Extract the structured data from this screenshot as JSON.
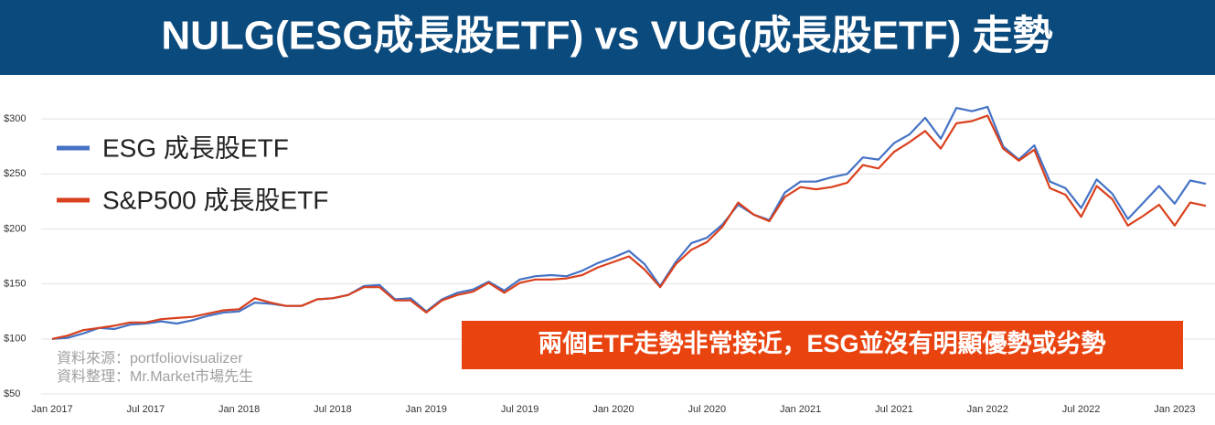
{
  "chart_data": {
    "type": "line",
    "title": "NULG(ESG成長股ETF) vs VUG(成長股ETF) 走勢",
    "annotation": "兩個ETF走勢非常接近，ESG並沒有明顯優勢或劣勢",
    "source": [
      "資料來源：portfoliovisualizer",
      "資料整理：Mr.Market市場先生"
    ],
    "legend": "top-left",
    "grid": true,
    "categories": [
      "Jan 2017",
      null,
      null,
      null,
      null,
      null,
      "Jul 2017",
      null,
      null,
      null,
      null,
      null,
      "Jan 2018",
      null,
      null,
      null,
      null,
      null,
      "Jul 2018",
      null,
      null,
      null,
      null,
      null,
      "Jan 2019",
      null,
      null,
      null,
      null,
      null,
      "Jul 2019",
      null,
      null,
      null,
      null,
      null,
      "Jan 2020",
      null,
      null,
      null,
      null,
      null,
      "Jul 2020",
      null,
      null,
      null,
      null,
      null,
      "Jan 2021",
      null,
      null,
      null,
      null,
      null,
      "Jul 2021",
      null,
      null,
      null,
      null,
      null,
      "Jan 2022",
      null,
      null,
      null,
      null,
      null,
      "Jul 2022",
      null,
      null,
      null,
      null,
      null,
      "Jan 2023",
      null,
      null
    ],
    "ylim": [
      50,
      325
    ],
    "yticks": [
      {
        "value": 50,
        "label": "$50"
      },
      {
        "value": 100,
        "label": "$100"
      },
      {
        "value": 150,
        "label": "$150"
      },
      {
        "value": 200,
        "label": "$200"
      },
      {
        "value": 250,
        "label": "$250"
      },
      {
        "value": 300,
        "label": "$300"
      }
    ],
    "series": [
      {
        "name": "ESG 成長股ETF",
        "color": "#4472c4",
        "values": [
          100,
          101,
          105,
          110,
          109,
          113,
          114,
          116,
          114,
          117,
          121,
          124,
          125,
          133,
          132,
          130,
          130,
          136,
          137,
          140,
          148,
          149,
          136,
          137,
          125,
          136,
          142,
          145,
          152,
          144,
          154,
          157,
          158,
          157,
          162,
          169,
          174,
          180,
          168,
          148,
          170,
          187,
          192,
          204,
          222,
          213,
          208,
          233,
          243,
          243,
          247,
          250,
          265,
          263,
          278,
          286,
          301,
          282,
          310,
          307,
          311,
          275,
          263,
          276,
          243,
          237,
          219,
          245,
          232,
          209,
          224,
          239,
          223,
          244,
          241
        ]
      },
      {
        "name": "S&P500 成長股ETF",
        "color": "#d9401d",
        "values": [
          100,
          103,
          108,
          110,
          112,
          115,
          115,
          118,
          119,
          120,
          123,
          126,
          127,
          137,
          133,
          130,
          130,
          136,
          137,
          140,
          147,
          147,
          135,
          135,
          124,
          135,
          140,
          143,
          151,
          142,
          151,
          154,
          154,
          155,
          158,
          165,
          170,
          175,
          163,
          147,
          168,
          181,
          188,
          202,
          224,
          213,
          207,
          229,
          238,
          236,
          238,
          242,
          258,
          255,
          270,
          279,
          289,
          273,
          296,
          298,
          303,
          273,
          262,
          272,
          237,
          231,
          211,
          239,
          227,
          203,
          212,
          222,
          203,
          224,
          221
        ]
      }
    ]
  }
}
